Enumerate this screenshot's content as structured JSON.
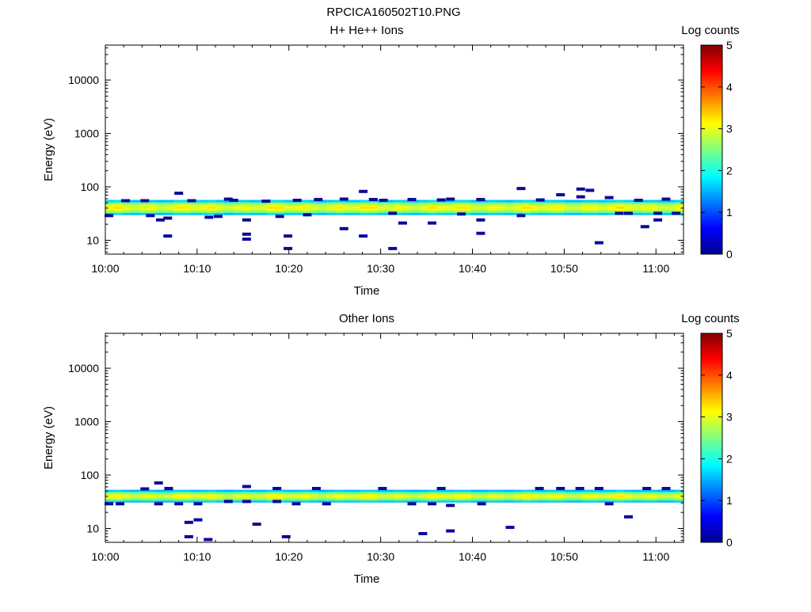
{
  "figure_title": "RPCICA160502T10.PNG",
  "chart_data": [
    {
      "type": "heatmap",
      "title": "H+ He++ Ions",
      "xlabel": "Time",
      "ylabel": "Energy (eV)",
      "colorbar_label": "Log counts",
      "x_ticks": [
        "10:00",
        "10:10",
        "10:20",
        "10:30",
        "10:40",
        "10:50",
        "11:00"
      ],
      "x_range_minutes": [
        0,
        63
      ],
      "y_scale": "log",
      "y_ticks": [
        "10",
        "100",
        "1000",
        "10000"
      ],
      "ylim": [
        5.5,
        45000
      ],
      "colorbar_ticks": [
        "0",
        "1",
        "2",
        "3",
        "4",
        "5"
      ],
      "zlim": [
        0,
        5
      ],
      "band": {
        "y_low": 30,
        "y_high": 57,
        "peak_log_counts": 3.1
      },
      "scattered_points": [
        [
          0.4,
          29
        ],
        [
          2.2,
          55
        ],
        [
          4.3,
          55
        ],
        [
          4.9,
          29
        ],
        [
          6.0,
          24
        ],
        [
          6.8,
          26
        ],
        [
          6.8,
          12
        ],
        [
          8.0,
          76
        ],
        [
          9.4,
          55
        ],
        [
          11.3,
          27
        ],
        [
          12.3,
          28
        ],
        [
          13.4,
          59
        ],
        [
          14.0,
          56
        ],
        [
          15.4,
          24
        ],
        [
          15.4,
          13
        ],
        [
          15.4,
          10.5
        ],
        [
          17.5,
          54
        ],
        [
          19.0,
          28
        ],
        [
          19.9,
          12
        ],
        [
          19.9,
          7
        ],
        [
          20.9,
          56
        ],
        [
          22.0,
          30
        ],
        [
          23.2,
          58
        ],
        [
          26.0,
          59
        ],
        [
          26.0,
          16.5
        ],
        [
          28.1,
          82
        ],
        [
          28.1,
          12
        ],
        [
          29.2,
          58
        ],
        [
          30.3,
          56
        ],
        [
          31.3,
          32
        ],
        [
          31.3,
          7
        ],
        [
          32.4,
          21
        ],
        [
          33.4,
          58
        ],
        [
          35.6,
          21
        ],
        [
          36.6,
          57
        ],
        [
          37.6,
          59
        ],
        [
          38.8,
          31
        ],
        [
          40.9,
          58
        ],
        [
          40.9,
          24
        ],
        [
          40.9,
          13.5
        ],
        [
          45.3,
          93
        ],
        [
          45.3,
          29
        ],
        [
          47.4,
          57
        ],
        [
          49.6,
          71
        ],
        [
          51.8,
          91
        ],
        [
          51.8,
          65
        ],
        [
          52.8,
          86
        ],
        [
          53.8,
          9
        ],
        [
          54.9,
          63
        ],
        [
          56.0,
          32
        ],
        [
          57.0,
          32
        ],
        [
          58.1,
          56
        ],
        [
          58.8,
          18
        ],
        [
          60.2,
          24
        ],
        [
          60.2,
          32
        ],
        [
          61.1,
          59
        ],
        [
          62.2,
          32
        ]
      ]
    },
    {
      "type": "heatmap",
      "title": "Other Ions",
      "xlabel": "Time",
      "ylabel": "Energy (eV)",
      "colorbar_label": "Log counts",
      "x_ticks": [
        "10:00",
        "10:10",
        "10:20",
        "10:30",
        "10:40",
        "10:50",
        "11:00"
      ],
      "x_range_minutes": [
        0,
        63
      ],
      "y_scale": "log",
      "y_ticks": [
        "10",
        "100",
        "1000",
        "10000"
      ],
      "ylim": [
        5.5,
        45000
      ],
      "colorbar_ticks": [
        "0",
        "1",
        "2",
        "3",
        "4",
        "5"
      ],
      "zlim": [
        0,
        5
      ],
      "band": {
        "y_low": 31,
        "y_high": 53,
        "peak_log_counts": 3.0
      },
      "scattered_points": [
        [
          0.4,
          29
        ],
        [
          1.6,
          29
        ],
        [
          4.3,
          55
        ],
        [
          5.8,
          71
        ],
        [
          5.8,
          29
        ],
        [
          6.9,
          56
        ],
        [
          8.0,
          29
        ],
        [
          9.1,
          13
        ],
        [
          9.1,
          7
        ],
        [
          10.1,
          14.5
        ],
        [
          10.1,
          29
        ],
        [
          11.2,
          6.2
        ],
        [
          13.4,
          32
        ],
        [
          15.4,
          61
        ],
        [
          15.4,
          32
        ],
        [
          16.5,
          12
        ],
        [
          18.7,
          32
        ],
        [
          18.7,
          56
        ],
        [
          19.7,
          7
        ],
        [
          20.8,
          29
        ],
        [
          23.0,
          56
        ],
        [
          24.1,
          29
        ],
        [
          30.2,
          56
        ],
        [
          33.4,
          29
        ],
        [
          34.6,
          8
        ],
        [
          35.6,
          29
        ],
        [
          36.6,
          56
        ],
        [
          37.6,
          27
        ],
        [
          37.6,
          9
        ],
        [
          41.0,
          29
        ],
        [
          44.1,
          10.5
        ],
        [
          47.3,
          56
        ],
        [
          49.6,
          56
        ],
        [
          51.7,
          56
        ],
        [
          53.8,
          56
        ],
        [
          54.9,
          29
        ],
        [
          57.0,
          16.5
        ],
        [
          59.0,
          56
        ],
        [
          61.1,
          56
        ]
      ]
    }
  ]
}
